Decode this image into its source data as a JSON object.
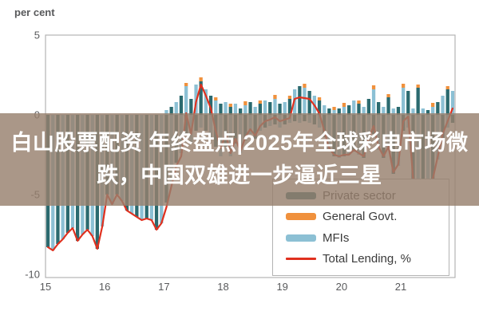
{
  "banner": {
    "line1": "白山股票配资 年终盘点|2025年全球彩电市场微",
    "line2": "跌，中国双雄进一步逼近三星",
    "bg_color": "rgba(151,128,110,0.82)",
    "text_color": "#ffffff"
  },
  "legend": {
    "items": [
      {
        "label": "Private sector",
        "color": "#2b6a6f",
        "shape": "bar"
      },
      {
        "label": "General Govt.",
        "color": "#f0913d",
        "shape": "bar"
      },
      {
        "label": "MFIs",
        "color": "#8cc0d4",
        "shape": "bar"
      },
      {
        "label": "Total Lending, %",
        "color": "#e0301e",
        "shape": "line"
      }
    ]
  },
  "chart_data": {
    "type": "bar+line",
    "title": "per cent",
    "xlabel": "",
    "ylabel": "per cent",
    "x_ticks": [
      "15",
      "16",
      "17",
      "18",
      "19",
      "20",
      "21"
    ],
    "y_ticks": [
      5,
      0,
      -5,
      -10
    ],
    "ylim": [
      -10,
      5
    ],
    "x_start_year": 2015,
    "x_frequency": "monthly",
    "axis_color": "#b3b3b3",
    "zero_line_color": "#cccccc",
    "bar_color_dark": "#2b6a6f",
    "bar_color_light": "#8cc0d4",
    "bar_color_govt": "#f0913d",
    "line_color": "#e0301e",
    "total": [
      -8.3,
      -8.5,
      -8.1,
      -7.8,
      -7.4,
      -7.1,
      -7.9,
      -7.5,
      -7.2,
      -7.6,
      -8.4,
      -7.0,
      -5.0,
      -5.6,
      -5.0,
      -5.4,
      -6.0,
      -6.2,
      -6.4,
      -6.6,
      -6.5,
      -6.6,
      -7.2,
      -6.8,
      -5.8,
      -4.5,
      -3.2,
      -2.6,
      0.1,
      -1.2,
      0.8,
      1.9,
      1.2,
      0.4,
      -1.0,
      -2.1,
      -1.2,
      -2.4,
      -1.5,
      -2.3,
      -1.4,
      -0.9,
      -1.3,
      -0.7,
      -0.4,
      -0.3,
      -0.15,
      -0.4,
      -0.3,
      -0.2,
      1.0,
      1.1,
      1.05,
      1.0,
      0.6,
      0.1,
      -1.0,
      -2.1,
      -2.5,
      -2.6,
      -2.5,
      -2.5,
      -2.2,
      -2.4,
      -2.6,
      -1.5,
      -0.7,
      -2.0,
      -2.6,
      -2.0,
      -3.6,
      -3.1,
      -0.4,
      -0.1,
      -4.0,
      -4.2,
      -4.3,
      -4.4,
      -4.0,
      -2.6,
      -1.2,
      -0.4,
      0.4
    ],
    "bar_neg": [
      -8.3,
      -8.5,
      -8.1,
      -7.8,
      -7.4,
      -7.1,
      -7.9,
      -7.5,
      -7.2,
      -7.6,
      -8.4,
      -7.0,
      -5.0,
      -5.6,
      -5.0,
      -5.4,
      -6.0,
      -6.2,
      -6.4,
      -6.6,
      -6.5,
      -6.6,
      -7.2,
      -6.8,
      -5.5,
      -4.2,
      -3.0,
      -2.4,
      -1.2,
      -1.8,
      -1.0,
      -0.8,
      -1.0,
      -1.5,
      -2.0,
      -2.6,
      -2.0,
      -2.6,
      -1.8,
      -2.4,
      -1.6,
      -1.2,
      -1.5,
      -1.0,
      -0.8,
      -0.7,
      -0.6,
      -0.8,
      -0.6,
      -0.5,
      -0.4,
      -0.5,
      -0.4,
      -0.5,
      -0.6,
      -0.8,
      -1.4,
      -2.2,
      -2.6,
      -2.7,
      -2.6,
      -2.5,
      -2.3,
      -2.5,
      -2.7,
      -1.8,
      -1.2,
      -2.2,
      -2.7,
      -2.2,
      -3.7,
      -3.2,
      -1.0,
      -0.8,
      -4.1,
      -4.3,
      -4.4,
      -4.5,
      -4.1,
      -2.8,
      -1.5,
      -0.8,
      -0.5
    ],
    "bar_pos": [
      0,
      0,
      0,
      0,
      0,
      0,
      0,
      0,
      0,
      0,
      0,
      0,
      0,
      0,
      0,
      0,
      0,
      0,
      0,
      0,
      0,
      0,
      0,
      0,
      0.3,
      0.5,
      0.8,
      1.2,
      1.8,
      1.0,
      1.9,
      2.1,
      1.6,
      1.2,
      0.9,
      0.7,
      0.8,
      0.5,
      0.7,
      0.4,
      0.6,
      0.8,
      0.5,
      0.7,
      0.9,
      0.8,
      1.0,
      0.7,
      0.8,
      1.0,
      1.6,
      1.8,
      1.7,
      1.5,
      1.2,
      0.9,
      0.6,
      0.4,
      0.3,
      0.4,
      0.5,
      0.6,
      0.9,
      0.7,
      0.5,
      1.0,
      1.6,
      0.8,
      0.5,
      1.1,
      0.4,
      0.5,
      1.7,
      1.5,
      0.4,
      1.7,
      0.4,
      0.3,
      0.5,
      0.8,
      1.2,
      1.6,
      1.5
    ],
    "bar_govt": [
      0,
      0,
      0,
      0,
      0,
      0,
      0,
      0,
      0,
      0,
      0,
      0,
      0,
      0,
      0,
      0,
      0,
      0,
      0,
      0,
      0,
      0,
      0,
      0,
      0,
      0,
      0,
      0,
      0.2,
      0,
      0,
      0.25,
      0,
      0,
      0.2,
      0,
      0,
      0.2,
      0,
      0,
      0.25,
      0,
      0,
      0.2,
      0,
      0,
      0.25,
      0,
      0,
      0.2,
      0,
      0,
      0.25,
      0,
      0,
      0.2,
      0,
      0,
      0.2,
      0,
      0.25,
      0,
      0,
      0.2,
      0,
      0,
      0.25,
      0,
      0,
      0.2,
      0,
      0,
      0.25,
      0,
      0,
      0.2,
      0,
      0,
      0.25,
      0,
      0,
      0.2,
      0
    ]
  }
}
